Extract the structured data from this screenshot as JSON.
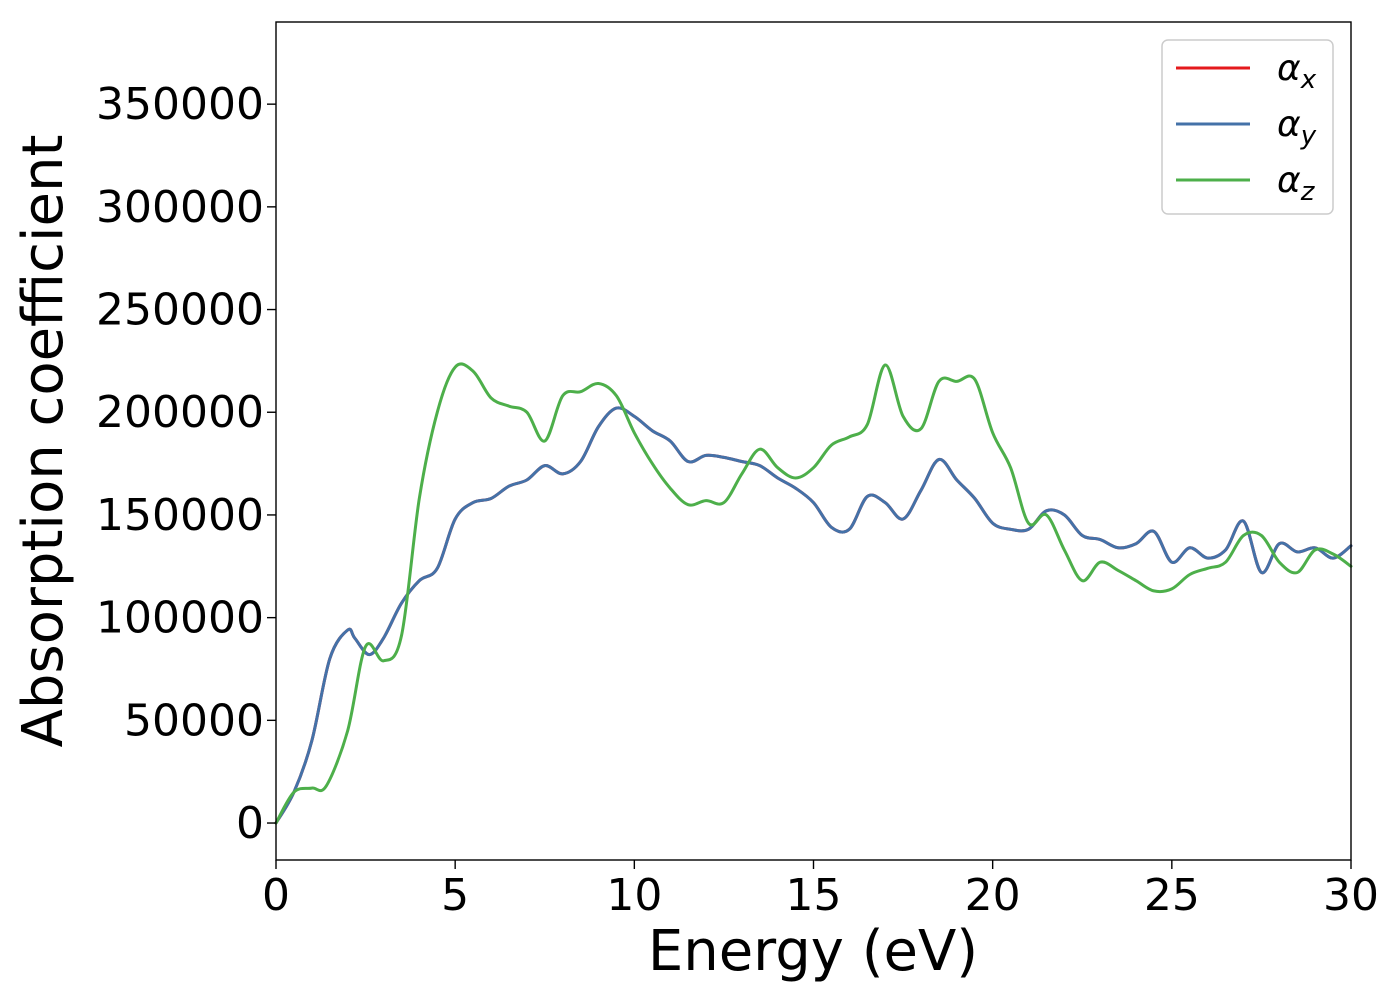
{
  "chart_data": {
    "type": "line",
    "xlabel": "Energy (eV)",
    "ylabel": "Absorption coefficient",
    "xlim": [
      0,
      30
    ],
    "ylim": [
      -18000,
      390000
    ],
    "xticks": [
      0,
      5,
      10,
      15,
      20,
      25,
      30
    ],
    "yticks": [
      0,
      50000,
      100000,
      150000,
      200000,
      250000,
      300000,
      350000
    ],
    "grid": false,
    "legend_position": "top-right",
    "series": [
      {
        "name": "αx",
        "legend": {
          "base": "α",
          "sub": "x"
        },
        "color": "#e41a1c",
        "x": [
          0,
          0.5,
          1,
          1.5,
          2,
          2.2,
          2.6,
          3,
          3.5,
          4,
          4.5,
          5,
          5.5,
          6,
          6.5,
          7,
          7.5,
          8,
          8.5,
          9,
          9.5,
          10,
          10.5,
          11,
          11.5,
          12,
          12.5,
          13,
          13.5,
          14,
          14.5,
          15,
          15.5,
          16,
          16.5,
          17,
          17.5,
          18,
          18.5,
          19,
          19.5,
          20,
          20.5,
          21,
          21.5,
          22,
          22.5,
          23,
          23.5,
          24,
          24.5,
          25,
          25.5,
          26,
          26.5,
          27,
          27.5,
          28,
          28.5,
          29,
          29.5,
          30
        ],
        "y": [
          0,
          15000,
          40000,
          80000,
          94000,
          90000,
          82000,
          90000,
          107000,
          118000,
          124000,
          148000,
          156000,
          158000,
          164000,
          167000,
          174000,
          170000,
          176000,
          193000,
          202000,
          198000,
          191000,
          186000,
          176000,
          179000,
          178000,
          176000,
          174000,
          168000,
          163000,
          156000,
          144000,
          143000,
          159000,
          156000,
          148000,
          162000,
          177000,
          167000,
          158000,
          146000,
          143000,
          143000,
          152000,
          150000,
          140000,
          138000,
          134000,
          136000,
          142000,
          127000,
          134000,
          129000,
          133000,
          147000,
          122000,
          136000,
          132000,
          134000,
          129000,
          135000
        ]
      },
      {
        "name": "αy",
        "legend": {
          "base": "α",
          "sub": "y"
        },
        "color": "#4472a8",
        "x": [
          0,
          0.5,
          1,
          1.5,
          2,
          2.2,
          2.6,
          3,
          3.5,
          4,
          4.5,
          5,
          5.5,
          6,
          6.5,
          7,
          7.5,
          8,
          8.5,
          9,
          9.5,
          10,
          10.5,
          11,
          11.5,
          12,
          12.5,
          13,
          13.5,
          14,
          14.5,
          15,
          15.5,
          16,
          16.5,
          17,
          17.5,
          18,
          18.5,
          19,
          19.5,
          20,
          20.5,
          21,
          21.5,
          22,
          22.5,
          23,
          23.5,
          24,
          24.5,
          25,
          25.5,
          26,
          26.5,
          27,
          27.5,
          28,
          28.5,
          29,
          29.5,
          30
        ],
        "y": [
          0,
          15000,
          40000,
          80000,
          94000,
          90000,
          82000,
          90000,
          107000,
          118000,
          124000,
          148000,
          156000,
          158000,
          164000,
          167000,
          174000,
          170000,
          176000,
          193000,
          202000,
          198000,
          191000,
          186000,
          176000,
          179000,
          178000,
          176000,
          174000,
          168000,
          163000,
          156000,
          144000,
          143000,
          159000,
          156000,
          148000,
          162000,
          177000,
          167000,
          158000,
          146000,
          143000,
          143000,
          152000,
          150000,
          140000,
          138000,
          134000,
          136000,
          142000,
          127000,
          134000,
          129000,
          133000,
          147000,
          122000,
          136000,
          132000,
          134000,
          129000,
          135000
        ]
      },
      {
        "name": "αz",
        "legend": {
          "base": "α",
          "sub": "z"
        },
        "color": "#4daf4a",
        "x": [
          0,
          0.5,
          1,
          1.4,
          2,
          2.5,
          3,
          3.5,
          4,
          4.5,
          5,
          5.5,
          6,
          6.5,
          7,
          7.5,
          8,
          8.5,
          9,
          9.5,
          10,
          10.5,
          11,
          11.5,
          12,
          12.5,
          13,
          13.5,
          14,
          14.5,
          15,
          15.5,
          16,
          16.5,
          17,
          17.5,
          18,
          18.5,
          19,
          19.5,
          20,
          20.5,
          21,
          21.5,
          22,
          22.5,
          23,
          23.5,
          24,
          24.5,
          25,
          25.5,
          26,
          26.5,
          27,
          27.5,
          28,
          28.5,
          29,
          29.5,
          30
        ],
        "y": [
          0,
          15000,
          17000,
          18000,
          45000,
          86000,
          79000,
          91000,
          158000,
          200000,
          222000,
          220000,
          207000,
          203000,
          200000,
          186000,
          208000,
          210000,
          214000,
          208000,
          190000,
          175000,
          163000,
          155000,
          157000,
          156000,
          170000,
          182000,
          173000,
          168000,
          173000,
          184000,
          188000,
          194000,
          223000,
          198000,
          192000,
          215000,
          215000,
          216000,
          190000,
          173000,
          146000,
          150000,
          133000,
          118000,
          127000,
          123000,
          118000,
          113000,
          114000,
          121000,
          124000,
          127000,
          140000,
          140000,
          127000,
          122000,
          133000,
          131000,
          125000
        ]
      }
    ]
  }
}
